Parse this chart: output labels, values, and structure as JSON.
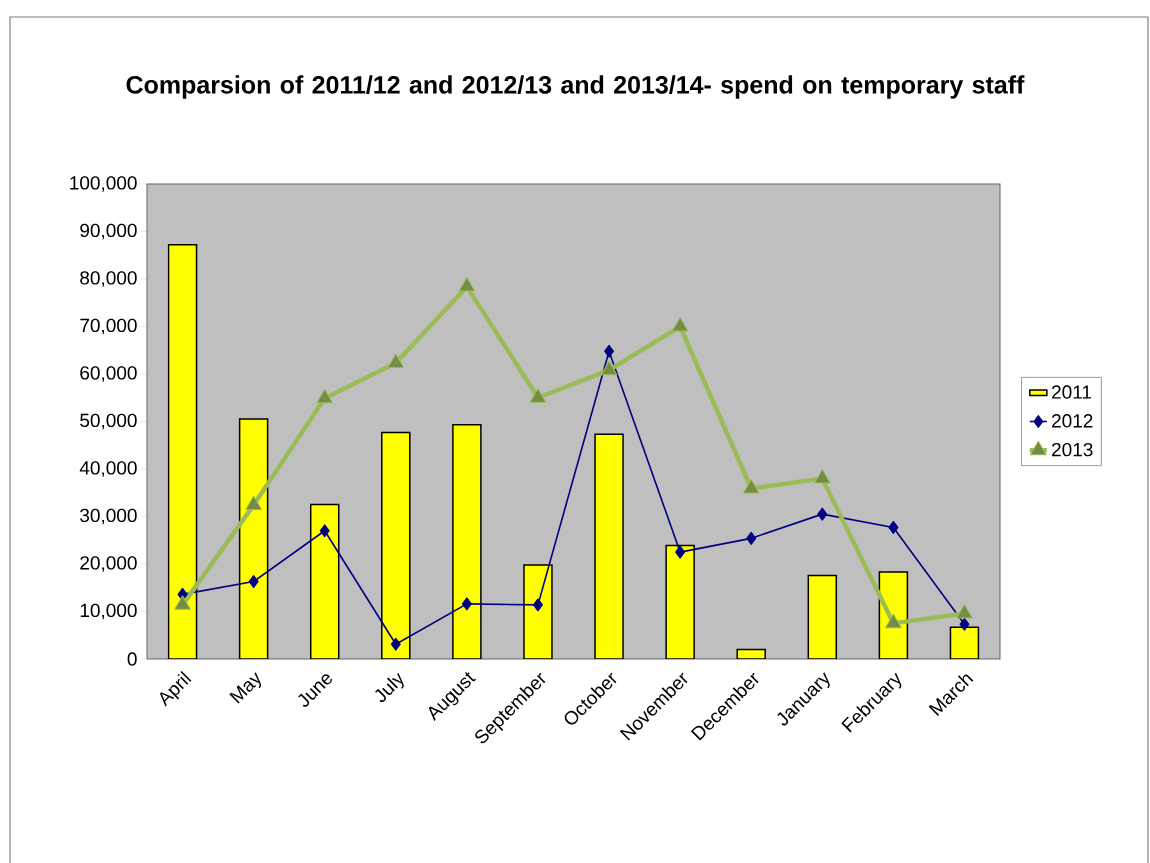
{
  "chart_data": {
    "type": "bar",
    "title": "Comparsion of 2011/12 and 2012/13 and 2013/14- spend on temporary staff",
    "categories": [
      "April",
      "May",
      "June",
      "July",
      "August",
      "September",
      "October",
      "November",
      "December",
      "January",
      "February",
      "March"
    ],
    "series": [
      {
        "name": "2011",
        "color": "#ffff00",
        "values": [
          87200,
          50500,
          32500,
          47700,
          49300,
          19800,
          47300,
          23900,
          2000,
          17600,
          18300,
          6700
        ]
      },
      {
        "name": "2012",
        "type": "line",
        "color": "#000080",
        "marker": "diamond",
        "values": [
          13600,
          16300,
          27000,
          3100,
          11600,
          11400,
          64800,
          22500,
          25400,
          30500,
          27700,
          7300
        ]
      },
      {
        "name": "2013",
        "type": "line",
        "color": "#9bbb59",
        "marker": "triangle",
        "values": [
          11400,
          32400,
          54900,
          62300,
          78400,
          55000,
          60800,
          70000,
          35900,
          38000,
          7500,
          9600
        ]
      }
    ],
    "ylim": [
      0,
      100000
    ],
    "yticks": [
      {
        "value": 0,
        "label": "0"
      },
      {
        "value": 10000,
        "label": "10,000"
      },
      {
        "value": 20000,
        "label": "20,000"
      },
      {
        "value": 30000,
        "label": "30,000"
      },
      {
        "value": 40000,
        "label": "40,000"
      },
      {
        "value": 50000,
        "label": "50,000"
      },
      {
        "value": 60000,
        "label": "60,000"
      },
      {
        "value": 70000,
        "label": "70,000"
      },
      {
        "value": 80000,
        "label": "80,000"
      },
      {
        "value": 90000,
        "label": "90,000"
      },
      {
        "value": 100000,
        "label": "100,000"
      }
    ],
    "grid": false,
    "legend": "right"
  }
}
